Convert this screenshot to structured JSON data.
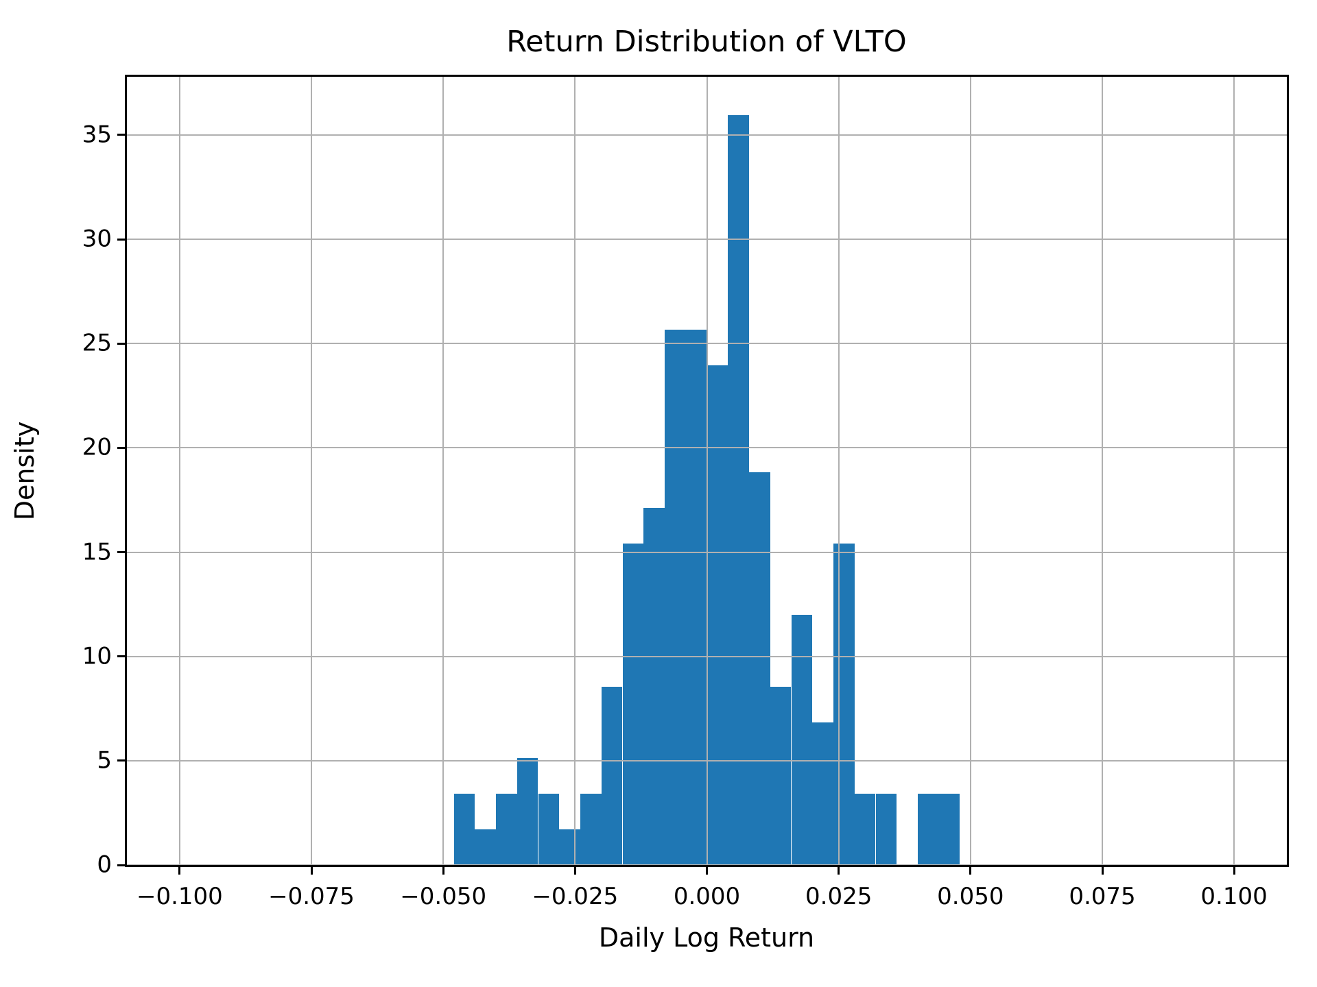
{
  "chart_data": {
    "type": "bar",
    "subtype": "histogram",
    "title": "Return Distribution of VLTO",
    "xlabel": "Daily Log Return",
    "ylabel": "Density",
    "bin_edges": [
      -0.048,
      -0.044,
      -0.04,
      -0.036,
      -0.032,
      -0.028,
      -0.024,
      -0.02,
      -0.016,
      -0.012,
      -0.008,
      -0.004,
      0.0,
      0.004,
      0.008,
      0.012,
      0.016,
      0.02,
      0.024,
      0.028,
      0.032,
      0.036,
      0.04,
      0.044,
      0.048
    ],
    "densities": [
      3.42,
      1.71,
      3.42,
      5.14,
      3.42,
      1.71,
      3.42,
      8.56,
      15.41,
      17.12,
      25.68,
      25.68,
      23.97,
      35.96,
      18.84,
      8.56,
      11.99,
      6.85,
      15.41,
      3.42,
      3.42,
      0,
      3.42,
      3.42
    ],
    "xlim": [
      -0.11,
      0.11
    ],
    "ylim": [
      0,
      37.79
    ],
    "x_ticks": [
      -0.1,
      -0.075,
      -0.05,
      -0.025,
      0.0,
      0.025,
      0.05,
      0.075,
      0.1
    ],
    "x_tick_labels": [
      "−0.100",
      "−0.075",
      "−0.050",
      "−0.025",
      "0.000",
      "0.025",
      "0.050",
      "0.075",
      "0.100"
    ],
    "y_ticks": [
      0,
      5,
      10,
      15,
      20,
      25,
      30,
      35
    ],
    "y_tick_labels": [
      "0",
      "5",
      "10",
      "15",
      "20",
      "25",
      "30",
      "35"
    ],
    "grid": true,
    "grid_over_bars": true,
    "legend": "none",
    "bar_color": "#1f77b4",
    "grid_color": "#b0b0b0",
    "axis_color": "#000000",
    "background_color": "#ffffff"
  }
}
